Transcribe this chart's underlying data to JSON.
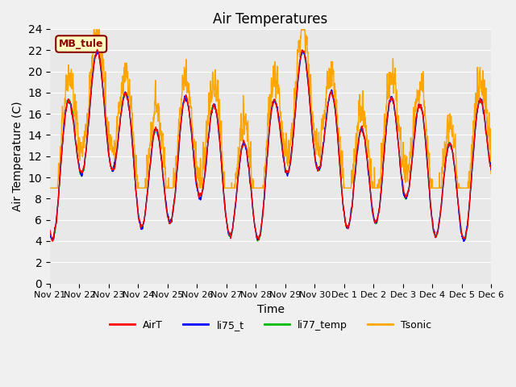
{
  "title": "Air Temperatures",
  "xlabel": "Time",
  "ylabel": "Air Temperature (C)",
  "ylim": [
    0,
    24
  ],
  "yticks": [
    0,
    2,
    4,
    6,
    8,
    10,
    12,
    14,
    16,
    18,
    20,
    22,
    24
  ],
  "x_labels": [
    "Nov 21",
    "Nov 22",
    "Nov 23",
    "Nov 24",
    "Nov 25",
    "Nov 26",
    "Nov 27",
    "Nov 28",
    "Nov 29",
    "Nov 30",
    "Dec 1",
    "Dec 2",
    "Dec 3",
    "Dec 4",
    "Dec 5",
    "Dec 6"
  ],
  "annotation": "MB_tule",
  "annotation_color": "#8B0000",
  "annotation_bg": "#FFFFC0",
  "colors": {
    "AirT": "#FF0000",
    "li75_t": "#0000FF",
    "li77_temp": "#00BB00",
    "Tsonic": "#FFA500"
  },
  "legend_labels": [
    "AirT",
    "li75_t",
    "li77_temp",
    "Tsonic"
  ],
  "bg_color": "#E8E8E8",
  "plot_bg": "#E8E8E8"
}
